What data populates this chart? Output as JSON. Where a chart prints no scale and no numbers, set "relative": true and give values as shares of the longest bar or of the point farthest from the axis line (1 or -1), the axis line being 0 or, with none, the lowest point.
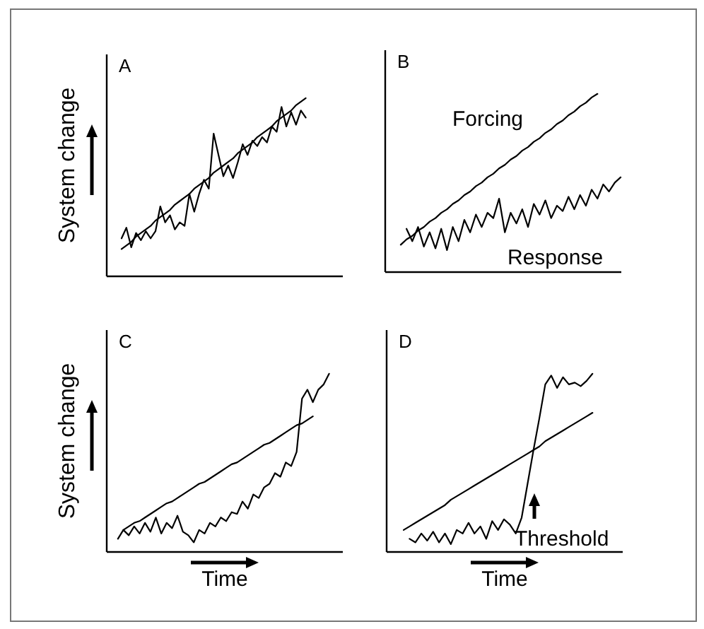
{
  "chart_data": [
    {
      "type": "line",
      "title": "A",
      "ylabel": "System change",
      "relative": true,
      "categories": [
        null,
        null,
        null,
        null,
        null,
        null,
        null,
        null,
        null,
        null,
        null,
        null,
        null,
        null,
        null,
        null,
        null,
        null,
        null,
        null,
        null,
        null,
        null,
        null,
        null,
        null,
        null,
        null,
        null,
        null,
        null,
        null,
        null,
        null,
        null,
        null,
        null,
        null,
        null
      ],
      "series": [
        {
          "color": "#000000",
          "values": [
            0.15,
            0.17,
            0.19,
            0.22,
            0.24,
            0.26,
            0.28,
            0.31,
            0.33,
            0.35,
            0.37,
            0.4,
            0.42,
            0.44,
            0.46,
            0.49,
            0.51,
            0.53,
            0.55,
            0.58,
            0.6,
            0.62,
            0.64,
            0.66,
            0.69,
            0.71,
            0.73,
            0.75,
            0.78,
            0.8,
            0.82,
            0.84,
            0.87,
            0.89,
            0.91,
            0.93,
            0.96,
            0.98,
            1.0
          ]
        },
        {
          "color": "#000000",
          "values": [
            0.21,
            0.27,
            0.16,
            0.24,
            0.2,
            0.25,
            0.21,
            0.25,
            0.39,
            0.3,
            0.34,
            0.26,
            0.3,
            0.28,
            0.46,
            0.36,
            0.46,
            0.54,
            0.49,
            0.8,
            0.68,
            0.56,
            0.62,
            0.55,
            0.64,
            0.74,
            0.68,
            0.76,
            0.73,
            0.78,
            0.75,
            0.84,
            0.81,
            0.95,
            0.84,
            0.92,
            0.85,
            0.93,
            0.89
          ]
        }
      ]
    },
    {
      "type": "line",
      "title": "B",
      "relative": true,
      "categories": [
        null,
        null,
        null,
        null,
        null,
        null,
        null,
        null,
        null,
        null,
        null,
        null,
        null,
        null,
        null,
        null,
        null,
        null,
        null,
        null,
        null,
        null,
        null,
        null,
        null,
        null,
        null,
        null,
        null,
        null,
        null,
        null,
        null,
        null,
        null,
        null,
        null,
        null,
        null
      ],
      "series": [
        {
          "name": "Forcing",
          "color": "#000000",
          "values": [
            0.15,
            0.18,
            0.2,
            0.23,
            0.25,
            0.28,
            0.3,
            0.33,
            0.35,
            0.38,
            0.4,
            0.43,
            0.45,
            0.48,
            0.5,
            0.53,
            0.55,
            0.58,
            0.6,
            0.63,
            0.65,
            0.68,
            0.7,
            0.73,
            0.75,
            0.78,
            0.8,
            0.83,
            0.85,
            0.88,
            0.9,
            0.93,
            0.95,
            0.98,
            1.0,
            null,
            null,
            null,
            null
          ]
        },
        {
          "name": "Response",
          "color": "#000000",
          "values": [
            null,
            0.24,
            0.17,
            0.25,
            0.14,
            0.22,
            0.13,
            0.24,
            0.12,
            0.25,
            0.17,
            0.29,
            0.22,
            0.32,
            0.25,
            0.33,
            0.3,
            0.41,
            0.22,
            0.33,
            0.27,
            0.35,
            0.25,
            0.38,
            0.32,
            0.4,
            0.3,
            0.37,
            0.34,
            0.42,
            0.35,
            0.43,
            0.37,
            0.46,
            0.41,
            0.49,
            0.45,
            0.5,
            0.53
          ]
        }
      ]
    },
    {
      "type": "line",
      "title": "C",
      "ylabel": "System change",
      "xlabel": "Time",
      "relative": true,
      "categories": [
        null,
        null,
        null,
        null,
        null,
        null,
        null,
        null,
        null,
        null,
        null,
        null,
        null,
        null,
        null,
        null,
        null,
        null,
        null,
        null,
        null,
        null,
        null,
        null,
        null,
        null,
        null,
        null,
        null,
        null,
        null,
        null,
        null,
        null,
        null,
        null,
        null,
        null,
        null,
        null
      ],
      "series": [
        {
          "color": "#000000",
          "values": [
            null,
            0.12,
            0.14,
            0.16,
            0.17,
            0.19,
            0.21,
            0.23,
            0.25,
            0.27,
            0.28,
            0.3,
            0.32,
            0.34,
            0.36,
            0.38,
            0.39,
            0.41,
            0.43,
            0.45,
            0.47,
            0.49,
            0.5,
            0.52,
            0.54,
            0.56,
            0.58,
            0.6,
            0.61,
            0.63,
            0.65,
            0.67,
            0.69,
            0.71,
            0.72,
            0.74,
            0.76,
            null,
            null,
            null
          ]
        },
        {
          "color": "#000000",
          "values": [
            0.07,
            0.12,
            0.09,
            0.14,
            0.1,
            0.16,
            0.11,
            0.19,
            0.1,
            0.16,
            0.13,
            0.2,
            0.11,
            0.09,
            0.05,
            0.12,
            0.1,
            0.16,
            0.14,
            0.19,
            0.17,
            0.22,
            0.21,
            0.28,
            0.24,
            0.32,
            0.3,
            0.36,
            0.38,
            0.44,
            0.42,
            0.5,
            0.48,
            0.56,
            0.86,
            0.91,
            0.84,
            0.91,
            0.94,
            1.0
          ]
        }
      ]
    },
    {
      "type": "line",
      "title": "D",
      "xlabel": "Time",
      "relative": true,
      "categories": [
        null,
        null,
        null,
        null,
        null,
        null,
        null,
        null,
        null,
        null,
        null,
        null,
        null,
        null,
        null,
        null,
        null,
        null,
        null,
        null,
        null,
        null,
        null,
        null,
        null,
        null,
        null,
        null,
        null,
        null,
        null,
        null,
        null
      ],
      "annotations": [
        "Threshold"
      ],
      "series": [
        {
          "color": "#000000",
          "values": [
            0.12,
            0.14,
            0.16,
            0.18,
            0.2,
            0.22,
            0.24,
            0.26,
            0.29,
            0.31,
            0.33,
            0.35,
            0.37,
            0.39,
            0.41,
            0.43,
            0.45,
            0.47,
            0.49,
            0.51,
            0.53,
            0.55,
            0.57,
            0.59,
            0.62,
            0.64,
            0.66,
            0.68,
            0.7,
            0.72,
            0.74,
            0.76,
            0.78
          ]
        },
        {
          "color": "#000000",
          "values": [
            null,
            0.07,
            0.05,
            0.1,
            0.06,
            0.11,
            0.05,
            0.1,
            0.04,
            0.12,
            0.1,
            0.16,
            0.1,
            0.14,
            0.07,
            0.17,
            0.12,
            0.18,
            0.15,
            0.1,
            0.19,
            0.38,
            0.57,
            0.75,
            0.94,
            0.99,
            0.92,
            0.98,
            0.94,
            0.95,
            0.93,
            0.96,
            1.0
          ]
        }
      ]
    }
  ]
}
